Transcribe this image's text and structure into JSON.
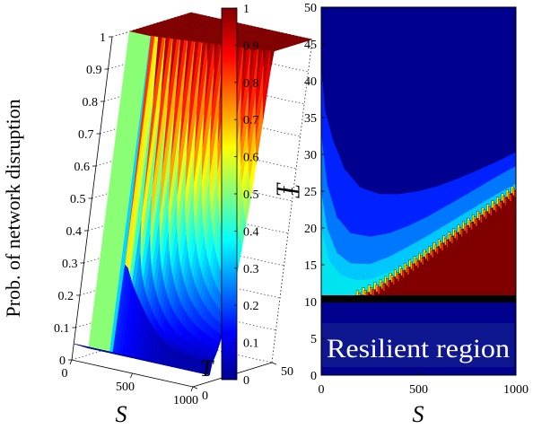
{
  "chart_data": [
    {
      "type": "surface3d",
      "zlabel": "Prob. of network disruption",
      "xlabel": "S",
      "ylabel": "T",
      "x_ticks": [
        "0",
        "500",
        "1000"
      ],
      "y_ticks": [
        "0",
        "50"
      ],
      "z_ticks": [
        "0",
        "0.1",
        "0.2",
        "0.3",
        "0.4",
        "0.5",
        "0.6",
        "0.7",
        "0.8",
        "0.9",
        "1"
      ],
      "xlim": [
        0,
        1000
      ],
      "ylim": [
        0,
        50
      ],
      "zlim": [
        0,
        1
      ],
      "grid": true,
      "threshold_T": 10.5,
      "surface_description": "probability of disruption is 1 for T above the boundary curve and near 0 in the resilient region T < 10.5",
      "colorbar": {
        "label": "T",
        "range": [
          0,
          1
        ],
        "ticks": [
          "0",
          "0.1",
          "0.2",
          "0.3",
          "0.4",
          "0.5",
          "0.6",
          "0.7",
          "0.8",
          "0.9",
          "1"
        ],
        "colormap": "jet"
      }
    },
    {
      "type": "heatmap",
      "xlabel": "S",
      "ylabel": "T",
      "xlim": [
        0,
        1000
      ],
      "ylim": [
        0,
        50
      ],
      "x_ticks": [
        "0",
        "500",
        "1000"
      ],
      "y_ticks": [
        "0",
        "5",
        "10",
        "15",
        "20",
        "25",
        "30",
        "35",
        "40",
        "45",
        "50"
      ],
      "colormap": "jet",
      "threshold_T": 10.5,
      "annotation": "Resilient region",
      "contours": [
        {
          "level": 0.05,
          "points": [
            [
              0,
              42
            ],
            [
              20,
              36
            ],
            [
              60,
              32
            ],
            [
              120,
              28
            ],
            [
              200,
              25.5
            ],
            [
              300,
              24.6
            ],
            [
              400,
              24.6
            ],
            [
              500,
              25
            ],
            [
              600,
              25.7
            ],
            [
              700,
              26.7
            ],
            [
              800,
              27.8
            ],
            [
              900,
              29
            ],
            [
              1000,
              30.3
            ]
          ]
        },
        {
          "level": 0.15,
          "points": [
            [
              0,
              33
            ],
            [
              30,
              26
            ],
            [
              80,
              21.5
            ],
            [
              150,
              19.3
            ],
            [
              250,
              18.8
            ],
            [
              350,
              19.3
            ],
            [
              450,
              20.3
            ],
            [
              550,
              21.6
            ],
            [
              650,
              23.1
            ],
            [
              750,
              24.6
            ],
            [
              850,
              26.2
            ],
            [
              950,
              27.7
            ],
            [
              1000,
              28.4
            ]
          ]
        },
        {
          "level": 0.25,
          "points": [
            [
              0,
              25
            ],
            [
              30,
              20
            ],
            [
              80,
              16.6
            ],
            [
              150,
              15.2
            ],
            [
              250,
              15.1
            ],
            [
              350,
              16.1
            ],
            [
              450,
              17.5
            ],
            [
              550,
              19
            ],
            [
              650,
              20.6
            ],
            [
              750,
              22.2
            ],
            [
              850,
              23.8
            ],
            [
              950,
              25.3
            ],
            [
              1000,
              26
            ]
          ]
        },
        {
          "level": 0.4,
          "points": [
            [
              0,
              20
            ],
            [
              40,
              15.6
            ],
            [
              100,
              13.6
            ],
            [
              180,
              12.9
            ],
            [
              250,
              13
            ],
            [
              350,
              14
            ],
            [
              450,
              15.5
            ],
            [
              550,
              17.1
            ],
            [
              650,
              18.8
            ],
            [
              750,
              20.5
            ],
            [
              850,
              22.2
            ],
            [
              950,
              23.9
            ],
            [
              1000,
              24.8
            ]
          ]
        },
        {
          "level": 0.95,
          "points": [
            [
              180,
              10.5
            ],
            [
              300,
              12
            ],
            [
              400,
              13.8
            ],
            [
              500,
              15.6
            ],
            [
              600,
              17.5
            ],
            [
              700,
              19.4
            ],
            [
              800,
              21.3
            ],
            [
              900,
              23.2
            ],
            [
              1000,
              25.2
            ]
          ]
        }
      ]
    }
  ]
}
